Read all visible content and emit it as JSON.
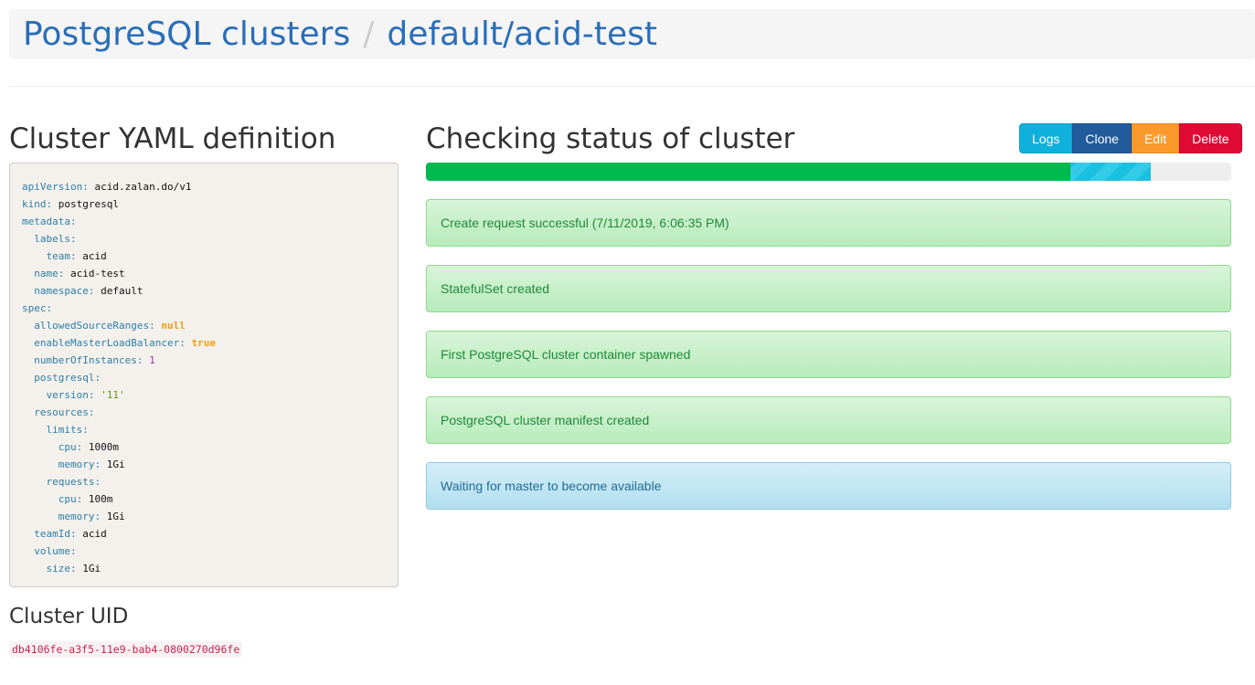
{
  "breadcrumb": {
    "root": "PostgreSQL clusters",
    "separator": "/",
    "current": "default/acid-test"
  },
  "yaml_section": {
    "title": "Cluster YAML definition",
    "lines": [
      {
        "i": 0,
        "k": "apiVersion",
        "v": "acid.zalan.do/v1",
        "t": "v"
      },
      {
        "i": 0,
        "k": "kind",
        "v": "postgresql",
        "t": "v"
      },
      {
        "i": 0,
        "k": "metadata",
        "v": "",
        "t": "v"
      },
      {
        "i": 1,
        "k": "labels",
        "v": "",
        "t": "v"
      },
      {
        "i": 2,
        "k": "team",
        "v": "acid",
        "t": "v"
      },
      {
        "i": 1,
        "k": "name",
        "v": "acid-test",
        "t": "v"
      },
      {
        "i": 1,
        "k": "namespace",
        "v": "default",
        "t": "v"
      },
      {
        "i": 0,
        "k": "spec",
        "v": "",
        "t": "v"
      },
      {
        "i": 1,
        "k": "allowedSourceRanges",
        "v": "null",
        "t": "n"
      },
      {
        "i": 1,
        "k": "enableMasterLoadBalancer",
        "v": "true",
        "t": "n"
      },
      {
        "i": 1,
        "k": "numberOfInstances",
        "v": "1",
        "t": "num"
      },
      {
        "i": 1,
        "k": "postgresql",
        "v": "",
        "t": "v"
      },
      {
        "i": 2,
        "k": "version",
        "v": "'11'",
        "t": "s"
      },
      {
        "i": 1,
        "k": "resources",
        "v": "",
        "t": "v"
      },
      {
        "i": 2,
        "k": "limits",
        "v": "",
        "t": "v"
      },
      {
        "i": 3,
        "k": "cpu",
        "v": "1000m",
        "t": "v"
      },
      {
        "i": 3,
        "k": "memory",
        "v": "1Gi",
        "t": "v"
      },
      {
        "i": 2,
        "k": "requests",
        "v": "",
        "t": "v"
      },
      {
        "i": 3,
        "k": "cpu",
        "v": "100m",
        "t": "v"
      },
      {
        "i": 3,
        "k": "memory",
        "v": "1Gi",
        "t": "v"
      },
      {
        "i": 1,
        "k": "teamId",
        "v": "acid",
        "t": "v"
      },
      {
        "i": 1,
        "k": "volume",
        "v": "",
        "t": "v"
      },
      {
        "i": 2,
        "k": "size",
        "v": "1Gi",
        "t": "v"
      }
    ]
  },
  "uid_section": {
    "title": "Cluster UID",
    "uid": "db4106fe-a3f5-11e9-bab4-0800270d96fe"
  },
  "status": {
    "title": "Checking status of cluster",
    "buttons": [
      {
        "label": "Logs",
        "color": "#0fb0dc"
      },
      {
        "label": "Clone",
        "color": "#215b9b"
      },
      {
        "label": "Edit",
        "color": "#fb9a2c"
      },
      {
        "label": "Delete",
        "color": "#e00a35"
      }
    ],
    "progress": {
      "complete_percent": 80,
      "in_progress_percent": 10
    },
    "steps": [
      {
        "text": "Create request successful (7/11/2019, 6:06:35 PM)",
        "state": "success"
      },
      {
        "text": "StatefulSet created",
        "state": "success"
      },
      {
        "text": "First PostgreSQL cluster container spawned",
        "state": "success"
      },
      {
        "text": "PostgreSQL cluster manifest created",
        "state": "success"
      },
      {
        "text": "Waiting for master to become available",
        "state": "info"
      }
    ]
  }
}
